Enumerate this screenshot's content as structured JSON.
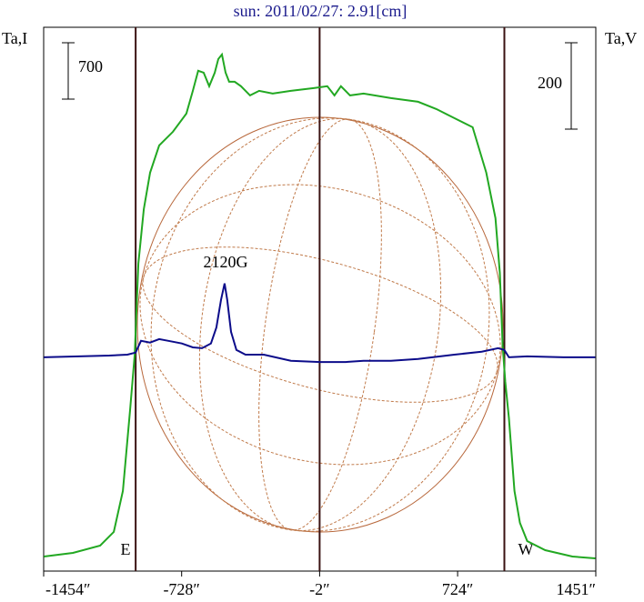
{
  "chart_data": {
    "type": "line",
    "title": "sun: 2011/02/27: 2.91[cm]",
    "ylabel": "Ta,I",
    "y2label": "Ta,V",
    "xlim": [
      -1454,
      1451
    ],
    "xticks": [
      {
        "value": -1454,
        "label": "-1454″"
      },
      {
        "value": -728,
        "label": "-728″"
      },
      {
        "value": -2,
        "label": "-2″"
      },
      {
        "value": 724,
        "label": "724″"
      },
      {
        "value": 1451,
        "label": "1451″"
      }
    ],
    "ylim": [
      0,
      6750
    ],
    "y2lim": [
      -495,
      764
    ],
    "y_scale_bar": 700,
    "y2_scale_bar": 200,
    "vertical_lines": [
      -970,
      -2,
      970
    ],
    "annotations": [
      "E",
      "W",
      "2120G"
    ],
    "series": [
      {
        "color": "#22a822",
        "axis": "y",
        "x": [
          -1453,
          -1300,
          -1157,
          -1085,
          -1037,
          -999,
          -975,
          -956,
          -927,
          -894,
          -846,
          -774,
          -703,
          -669,
          -641,
          -612,
          -583,
          -554,
          -535,
          -516,
          -497,
          -478,
          -449,
          -416,
          -368,
          -320,
          -249,
          -153,
          -33,
          38,
          76,
          110,
          158,
          229,
          373,
          516,
          612,
          707,
          803,
          875,
          923,
          946,
          961,
          975,
          994,
          1023,
          1052,
          1090,
          1185,
          1328,
          1448
        ],
        "values": [
          181,
          226,
          316,
          486,
          994,
          2010,
          2687,
          3816,
          4493,
          4945,
          5284,
          5453,
          5679,
          5961,
          6210,
          6187,
          6018,
          6187,
          6356,
          6412,
          6187,
          6074,
          6074,
          6018,
          5905,
          5961,
          5927,
          5961,
          5995,
          6018,
          5905,
          6018,
          5905,
          5927,
          5871,
          5826,
          5735,
          5622,
          5510,
          4945,
          4381,
          3703,
          2800,
          2348,
          1897,
          994,
          598,
          373,
          260,
          181,
          158
        ]
      },
      {
        "color": "#0c0c8a",
        "axis": "y2",
        "x": [
          -1453,
          -1109,
          -1013,
          -970,
          -942,
          -894,
          -846,
          -798,
          -727,
          -669,
          -621,
          -574,
          -545,
          -521,
          -502,
          -488,
          -468,
          -440,
          -392,
          -296,
          -153,
          0,
          134,
          229,
          373,
          516,
          707,
          851,
          937,
          970,
          994,
          1090,
          1281,
          1448
        ],
        "values": [
          0,
          4,
          6,
          11,
          38,
          34,
          42,
          38,
          32,
          23,
          21,
          32,
          69,
          133,
          171,
          133,
          59,
          17,
          6,
          6,
          -8,
          -11,
          -11,
          -8,
          -8,
          -4,
          6,
          13,
          21,
          17,
          0,
          2,
          0,
          0
        ]
      }
    ]
  }
}
